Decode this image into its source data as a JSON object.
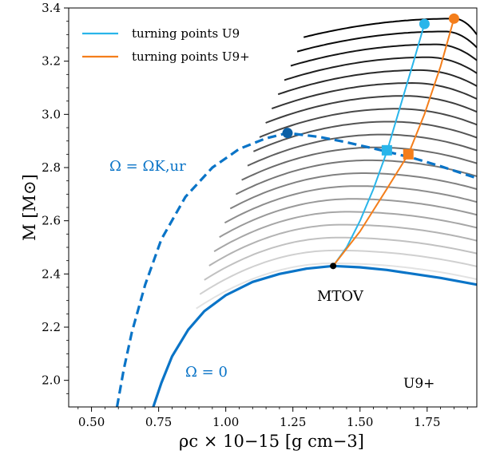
{
  "chart_data": {
    "type": "line",
    "title": "",
    "xlabel": "ρc × 10−15 [g cm−3]",
    "ylabel": "M [M⊙]",
    "xlim": [
      0.415,
      1.935
    ],
    "ylim": [
      1.9,
      3.4
    ],
    "xticks": [
      "0.50",
      "0.75",
      "1.00",
      "1.25",
      "1.50",
      "1.75"
    ],
    "yticks": [
      "2.0",
      "2.2",
      "2.4",
      "2.6",
      "2.8",
      "3.0",
      "3.2",
      "3.4"
    ],
    "grid": false,
    "legend_position": "top-left",
    "legend": [
      {
        "label": "turning points U9",
        "color": "#29b5ea"
      },
      {
        "label": "turning points U9+",
        "color": "#f47e1b"
      }
    ],
    "annotations": {
      "kepler_label": "Ω = ΩK,ur",
      "static_label": "Ω = 0",
      "tov_label": "MTOV",
      "model_label": "U9+"
    },
    "series": [
      {
        "name": "Ω = 0",
        "style": "solid",
        "color": "#0a74c7",
        "x": [
          0.73,
          0.76,
          0.8,
          0.86,
          0.92,
          1.0,
          1.1,
          1.2,
          1.3,
          1.4,
          1.5,
          1.6,
          1.7,
          1.8,
          1.935
        ],
        "y": [
          1.9,
          1.99,
          2.09,
          2.19,
          2.26,
          2.32,
          2.37,
          2.4,
          2.42,
          2.43,
          2.425,
          2.415,
          2.4,
          2.385,
          2.36
        ]
      },
      {
        "name": "Ω = ΩK,ur",
        "style": "dashed",
        "color": "#0a74c7",
        "x": [
          0.595,
          0.62,
          0.65,
          0.7,
          0.76,
          0.85,
          0.95,
          1.05,
          1.15,
          1.23,
          1.35,
          1.45,
          1.6,
          1.7,
          1.8,
          1.935
        ],
        "y": [
          1.9,
          2.04,
          2.18,
          2.36,
          2.53,
          2.69,
          2.8,
          2.87,
          2.91,
          2.93,
          2.915,
          2.895,
          2.86,
          2.835,
          2.805,
          2.76
        ]
      },
      {
        "name": "turning points U9",
        "style": "solid",
        "color": "#29b5ea",
        "x": [
          1.4,
          1.45,
          1.5,
          1.55,
          1.6,
          1.65,
          1.7,
          1.74
        ],
        "y": [
          2.43,
          2.5,
          2.6,
          2.72,
          2.86,
          3.03,
          3.2,
          3.34
        ]
      },
      {
        "name": "turning points U9+",
        "style": "solid",
        "color": "#f47e1b",
        "x": [
          1.4,
          1.5,
          1.6,
          1.68,
          1.74,
          1.8,
          1.85
        ],
        "y": [
          2.43,
          2.56,
          2.72,
          2.85,
          3.0,
          3.18,
          3.36
        ]
      }
    ],
    "markers": [
      {
        "x": 1.23,
        "y": 2.93,
        "shape": "circle",
        "color": "#0a5fa5"
      },
      {
        "x": 1.74,
        "y": 3.34,
        "shape": "circle",
        "color": "#29b5ea"
      },
      {
        "x": 1.85,
        "y": 3.36,
        "shape": "circle",
        "color": "#f47e1b"
      },
      {
        "x": 1.6,
        "y": 2.865,
        "shape": "square",
        "color": "#29b5ea"
      },
      {
        "x": 1.68,
        "y": 2.85,
        "shape": "square",
        "color": "#f47e1b"
      },
      {
        "x": 1.4,
        "y": 2.43,
        "shape": "dot",
        "color": "#000000"
      }
    ],
    "family": {
      "description": "sequences of rotating models",
      "count": 20,
      "start_x_min": 0.89,
      "start_x_max": 1.29,
      "peak_x_min": 1.4,
      "peak_x_max": 1.85,
      "peak_y_min": 2.44,
      "peak_y_max": 3.36,
      "end_x": 1.935,
      "color_light": "#e2e2e2",
      "color_dark": "#000000"
    }
  }
}
